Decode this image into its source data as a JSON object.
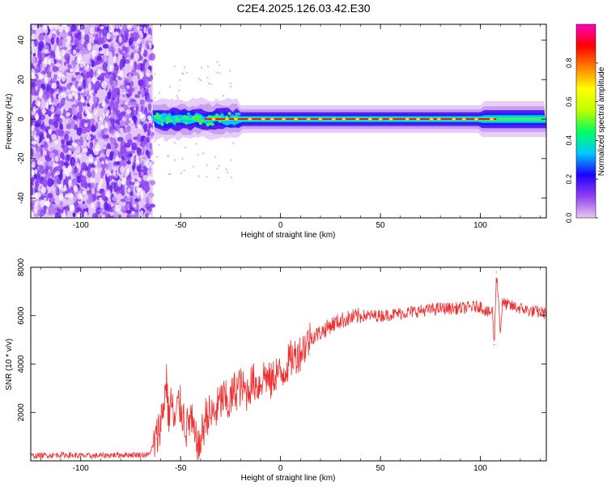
{
  "title": "C2E4.2025.126.03.42.E30",
  "chart_data": [
    {
      "type": "heatmap",
      "xlabel": "Height of straight line (km)",
      "ylabel": "Frequency (Hz)",
      "xlim": [
        -125,
        133
      ],
      "ylim": [
        -50,
        48
      ],
      "xticks": [
        "-100",
        "-50",
        "0",
        "50",
        "100"
      ],
      "yticks": [
        "-40",
        "-20",
        "0",
        "20",
        "40"
      ],
      "noise_region_x": [
        -125,
        -64
      ],
      "signal_start_x": -64,
      "colorbar": {
        "label": "Normalized spectral amplitude",
        "range": [
          0,
          1
        ],
        "ticks": [
          "0.0",
          "0.2",
          "0.4",
          "0.6",
          "0.8"
        ],
        "colors": [
          "#e8c8f0",
          "#9040f0",
          "#2000ff",
          "#00c8ff",
          "#00ff60",
          "#c0ff00",
          "#ffff00",
          "#ff8000",
          "#ff0000",
          "#ff00c0"
        ]
      }
    },
    {
      "type": "line",
      "xlabel": "Height of straight line (km)",
      "ylabel": "SNR (10 * v/v)",
      "xlim": [
        -125,
        133
      ],
      "ylim": [
        0,
        8000
      ],
      "xticks": [
        "-100",
        "-50",
        "0",
        "50",
        "100"
      ],
      "yticks": [
        "2000",
        "4000",
        "6000",
        "8000"
      ],
      "color": "#ee3030",
      "series": [
        {
          "x": [
            -125,
            -110,
            -95,
            -80,
            -66,
            -62,
            -59,
            -57,
            -56,
            -55,
            -53,
            -51,
            -49,
            -47,
            -45,
            -43,
            -41,
            -39,
            -37,
            -35,
            -32,
            -29,
            -26,
            -23,
            -20,
            -17,
            -14,
            -11,
            -8,
            -5,
            -2,
            0,
            5,
            10,
            15,
            20,
            25,
            30,
            35,
            40,
            50,
            60,
            70,
            80,
            90,
            100,
            104,
            106,
            107,
            108,
            109,
            110,
            111,
            112,
            115,
            120,
            125,
            133
          ],
          "y": [
            200,
            250,
            200,
            250,
            250,
            900,
            2000,
            3400,
            1600,
            2600,
            1500,
            2400,
            2000,
            1300,
            1800,
            900,
            500,
            1200,
            2000,
            1800,
            2100,
            2600,
            2300,
            2900,
            3100,
            2800,
            3300,
            3100,
            3600,
            3200,
            3700,
            3500,
            4200,
            4500,
            5100,
            5300,
            5600,
            5800,
            5900,
            6000,
            6000,
            6100,
            6200,
            6300,
            6300,
            6400,
            6100,
            6200,
            4800,
            7800,
            6800,
            5300,
            6500,
            6500,
            6400,
            6300,
            6200,
            6100
          ]
        }
      ]
    }
  ]
}
